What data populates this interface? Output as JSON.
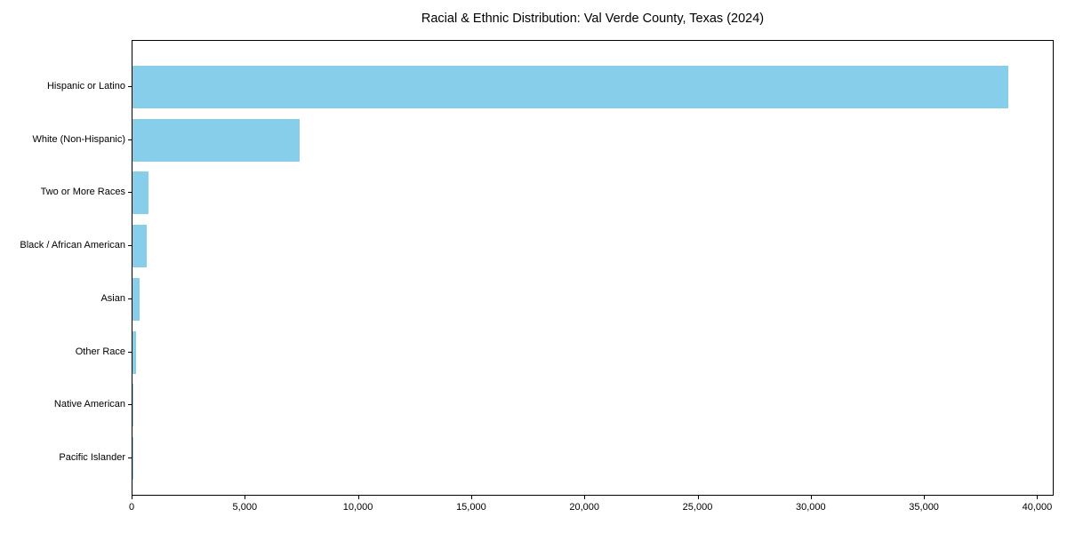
{
  "figure": {
    "background_color": "#FFFFFF",
    "spine_color": "#000000",
    "text_color": "#000000"
  },
  "chart_data": {
    "type": "bar",
    "orientation": "horizontal",
    "title": "Racial & Ethnic Distribution: Val Verde County, Texas (2024)",
    "categories": [
      "Hispanic or Latino",
      "White (Non-Hispanic)",
      "Two or More Races",
      "Black / African American",
      "Asian",
      "Other Race",
      "Native American",
      "Pacific Islander"
    ],
    "values": [
      38700,
      7400,
      700,
      610,
      330,
      150,
      50,
      15
    ],
    "xlabel": "",
    "ylabel": "",
    "xlim": [
      0,
      40730
    ],
    "xticks": [
      0,
      5000,
      10000,
      15000,
      20000,
      25000,
      30000,
      35000,
      40000
    ],
    "xtick_labels": [
      "0",
      "5,000",
      "10,000",
      "15,000",
      "20,000",
      "25,000",
      "30,000",
      "35,000",
      "40,000"
    ],
    "grid": false,
    "legend": null,
    "bar_color": "#87CEEB",
    "largest_category_on_top": true
  }
}
